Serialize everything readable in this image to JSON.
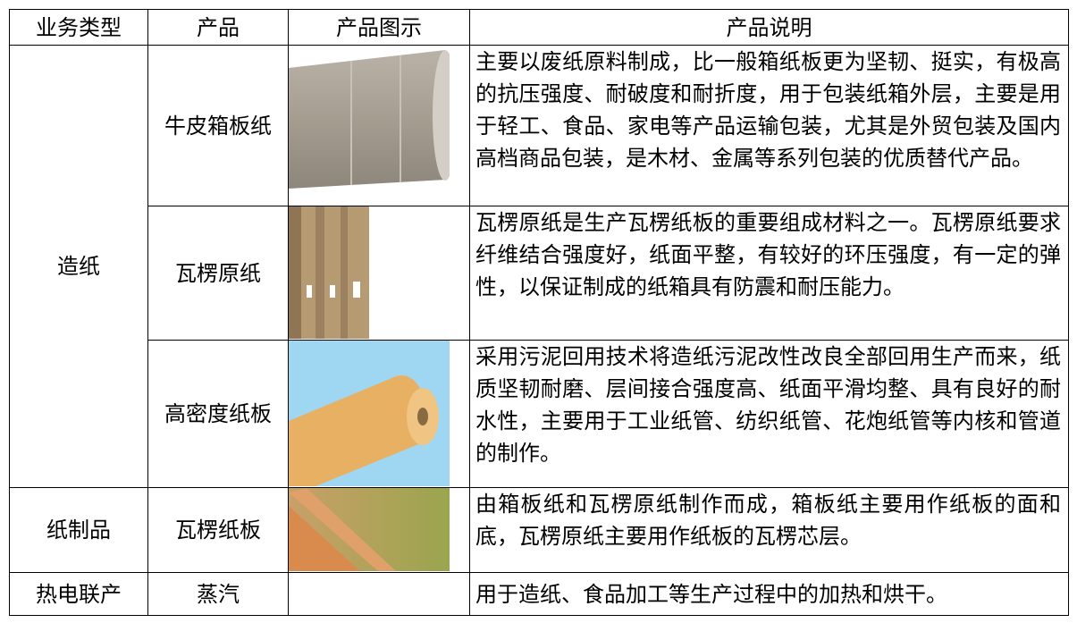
{
  "table": {
    "header": [
      "业务类型",
      "产品",
      "产品图示",
      "产品说明"
    ],
    "groups": [
      {
        "type": "造纸",
        "items": [
          {
            "product": "牛皮箱板纸",
            "description": "主要以废纸原料制成，比一般箱纸板更为坚韧、挺实，有极高的抗压强度、耐破度和耐折度，用于包装纸箱外层，主要是用于轻工、食品、家电等产品运输包装，尤其是外贸包装及国内高档商品包装，是木材、金属等系列包装的优质替代产品。"
          },
          {
            "product": "瓦楞原纸",
            "description": "瓦楞原纸是生产瓦楞纸板的重要组成材料之一。瓦楞原纸要求纤维结合强度好，纸面平整，有较好的环压强度，有一定的弹性，以保证制成的纸箱具有防震和耐压能力。"
          },
          {
            "product": "高密度纸板",
            "description": "采用污泥回用技术将造纸污泥改性改良全部回用生产而来，纸质坚韧耐磨、层间接合强度高、纸面平滑均整、具有良好的耐水性，主要用于工业纸管、纺织纸管、花炮纸管等内核和管道的制作。"
          }
        ]
      },
      {
        "type": "纸制品",
        "items": [
          {
            "product": "瓦楞纸板",
            "description": "由箱板纸和瓦楞原纸制作而成，箱板纸主要用作纸板的面和底，瓦楞原纸主要用作纸板的瓦楞芯层。"
          }
        ]
      },
      {
        "type": "热电联产",
        "items": [
          {
            "product": "蒸汽",
            "description": "用于造纸、食品加工等生产过程中的加热和烘干。"
          }
        ]
      }
    ]
  }
}
